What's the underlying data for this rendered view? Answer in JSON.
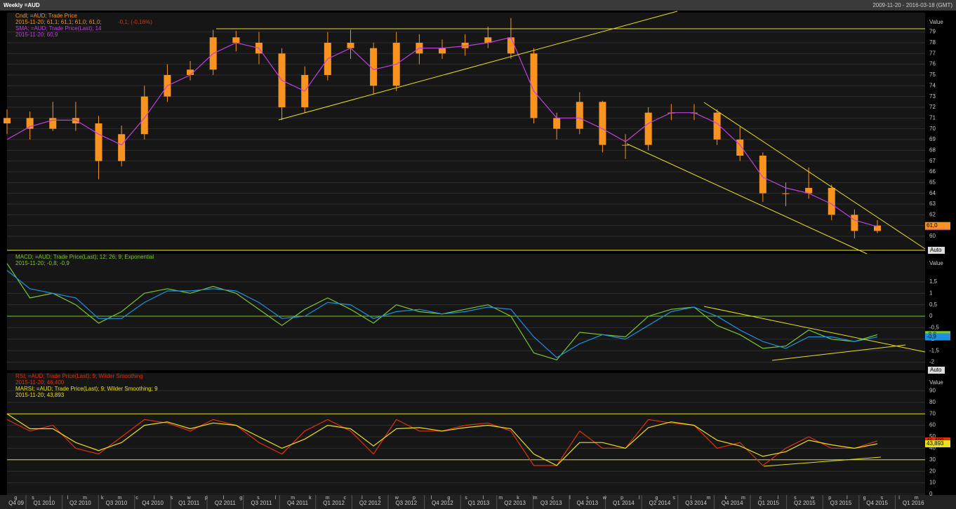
{
  "header": {
    "title": "Weekly =AUD",
    "range": "2009-11-20 - 2016-03-18 (GMT)"
  },
  "x_axis": {
    "quarters": [
      "Q4 09",
      "Q1 2010",
      "Q2 2010",
      "Q3 2010",
      "Q4 2010",
      "Q1 2011",
      "Q2 2011",
      "Q3 2011",
      "Q4 2011",
      "Q1 2012",
      "Q2 2012",
      "Q3 2012",
      "Q4 2012",
      "Q1 2013",
      "Q2 2013",
      "Q3 2013",
      "Q4 2013",
      "Q1 2014",
      "Q2 2014",
      "Q3 2014",
      "Q4 2014",
      "Q1 2015",
      "Q2 2015",
      "Q3 2015",
      "Q4 2015",
      "Q1 2016"
    ],
    "months": [
      "g",
      "s",
      "j",
      "l",
      "m",
      "k",
      "m",
      "c",
      "l",
      "s",
      "w",
      "p",
      "l",
      "g",
      "s",
      "l",
      "m",
      "k",
      "m",
      "c",
      "l",
      "s",
      "w",
      "p",
      "l",
      "g",
      "s",
      "l",
      "m",
      "k",
      "m",
      "c",
      "l",
      "s",
      "w",
      "p",
      "l",
      "g",
      "s",
      "l",
      "m",
      "k",
      "m",
      "c",
      "l",
      "s",
      "w",
      "p",
      "l",
      "g",
      "s",
      "l",
      "m"
    ]
  },
  "chart_data": [
    {
      "type": "candlestick",
      "axis_label": "Value",
      "scale_button": "Auto",
      "legend": [
        "Cndl; =AUD; Trade Price",
        "2015-11-20; 61,1; 61,1; 61,0; 61,0;",
        "-0,1; (-0,16%)",
        "SMA; =AUD; Trade Price(Last);  14",
        "2015-11-20; 60,9"
      ],
      "ylim": [
        58.7,
        80.8
      ],
      "yticks": [
        60,
        61,
        62,
        63,
        64,
        65,
        66,
        67,
        68,
        69,
        70,
        71,
        72,
        73,
        74,
        75,
        76,
        77,
        78,
        79
      ],
      "candles": {
        "color": "#f7931e",
        "open": [
          70.5,
          71,
          70,
          71,
          70.5,
          67,
          69.5,
          73,
          75,
          75.5,
          78.5,
          78,
          77,
          72,
          75,
          78,
          77.5,
          74,
          78,
          77,
          77.5,
          78,
          78.5,
          77,
          71,
          70,
          72.5,
          68.5,
          68.5,
          71.5,
          71.5,
          71.5,
          69,
          67.5,
          64,
          64,
          64.5,
          62,
          60.5
        ],
        "high": [
          71.8,
          71.6,
          72.5,
          72.5,
          71.2,
          70.3,
          74,
          76,
          76.3,
          79.2,
          79.1,
          79,
          77.5,
          75.8,
          79,
          79.2,
          78,
          79,
          78.8,
          78.3,
          78.8,
          79.5,
          80.3,
          77.5,
          71.5,
          73.4,
          72.6,
          69.5,
          72,
          72.3,
          72.3,
          71.8,
          70.2,
          67.8,
          65,
          66.4,
          64.8,
          62.5,
          61.5
        ],
        "low": [
          69.5,
          69,
          69.8,
          69.8,
          65.3,
          66.5,
          69,
          72.5,
          74.5,
          75,
          77.2,
          76,
          70.8,
          71.5,
          74.5,
          76.5,
          73.2,
          73.5,
          76,
          76.5,
          76.8,
          77.5,
          76.5,
          70.5,
          69,
          69.5,
          67.8,
          67.2,
          68,
          70.8,
          70.8,
          68.5,
          67,
          63.2,
          62.8,
          63.5,
          61.5,
          59.8,
          60.3
        ],
        "close": [
          71,
          70,
          71,
          70.5,
          67,
          69.5,
          73,
          75,
          75.5,
          78.5,
          78,
          77,
          72,
          75,
          78,
          77.5,
          74,
          78,
          77,
          77.5,
          78,
          78.5,
          77,
          71,
          70,
          72.5,
          68.5,
          68.5,
          71.5,
          71.5,
          71.5,
          69,
          67.5,
          64,
          64,
          64.5,
          62,
          60.5,
          61
        ],
        "last": {
          "value": 61.0,
          "label": "61,0"
        }
      },
      "series": [
        {
          "color": "#c040e0",
          "values": [
            69,
            70.2,
            70.8,
            70.8,
            69.5,
            68.5,
            71,
            74,
            75,
            77,
            78,
            77.5,
            74.5,
            73.5,
            76.5,
            77.5,
            75.5,
            76,
            77.5,
            77.5,
            77.7,
            78,
            78.5,
            73.5,
            71,
            71,
            70,
            68.8,
            70.5,
            71.5,
            71.5,
            70.5,
            68.5,
            65.5,
            64.5,
            64,
            63,
            61.5,
            60.9
          ],
          "last": {
            "value": 60.9,
            "label": "60,9"
          }
        }
      ]
    },
    {
      "type": "line",
      "axis_label": "Value",
      "scale_button": "Auto",
      "legend": [
        "MACD; =AUD; Trade Price(Last);  12; 26; 9; Exponential",
        "2015-11-20; -0,8; -0,9"
      ],
      "ylim": [
        -2.35,
        2.72
      ],
      "yticks": [
        {
          "value": 1.5,
          "label": "1,5"
        },
        1,
        {
          "value": 0.5,
          "label": "0,5"
        },
        0,
        {
          "value": -0.5,
          "label": "-0,5"
        },
        -1,
        {
          "value": -1.5,
          "label": "-1,5"
        },
        -2
      ],
      "hlines": [
        {
          "value": 0,
          "color": "#7bc62d"
        }
      ],
      "series": [
        {
          "color": "#7bc62d",
          "values": [
            2.3,
            0.8,
            1.0,
            0.5,
            -0.3,
            0.2,
            1.0,
            1.2,
            1.0,
            1.3,
            1.0,
            0.3,
            -0.4,
            0.3,
            0.8,
            0.3,
            -0.3,
            0.5,
            0.2,
            0.1,
            0.3,
            0.5,
            0.0,
            -1.6,
            -1.9,
            -0.7,
            -0.8,
            -0.9,
            0.0,
            0.3,
            0.4,
            -0.4,
            -0.8,
            -1.4,
            -1.3,
            -0.6,
            -1.0,
            -1.1,
            -0.8
          ],
          "last": {
            "value": -0.8,
            "label": "-0,8"
          }
        },
        {
          "color": "#1e90e0",
          "values": [
            2.0,
            1.2,
            1.0,
            0.8,
            -0.1,
            -0.1,
            0.6,
            1.1,
            1.1,
            1.2,
            1.1,
            0.6,
            -0.1,
            0.0,
            0.6,
            0.5,
            -0.1,
            0.2,
            0.3,
            0.1,
            0.2,
            0.4,
            0.3,
            -0.9,
            -1.8,
            -1.2,
            -0.8,
            -1.0,
            -0.4,
            0.2,
            0.4,
            0.0,
            -0.6,
            -1.1,
            -1.4,
            -0.9,
            -0.9,
            -1.1,
            -0.9
          ],
          "last": {
            "value": -0.9,
            "label": "-0,9"
          }
        }
      ]
    },
    {
      "type": "line",
      "axis_label": "Value",
      "legend": [
        "RSI; =AUD; Trade Price(Last);  9; Wilder Smoothing",
        "2015-11-20; 46,400",
        "MARSI; =AUD; Trade Price(Last);  9; Wilder Smoothing; 9",
        "2015-11-20; 43,893"
      ],
      "ylim": [
        0,
        105.5
      ],
      "yticks": [
        0,
        10,
        20,
        30,
        40,
        50,
        60,
        70,
        80,
        90
      ],
      "hlines": [
        {
          "value": 70,
          "color": "#d8d820"
        },
        {
          "value": 30,
          "color": "#d8d820"
        }
      ],
      "series": [
        {
          "color": "#e03010",
          "values": [
            65,
            55,
            60,
            40,
            35,
            50,
            65,
            62,
            55,
            65,
            60,
            45,
            35,
            55,
            65,
            55,
            35,
            65,
            55,
            55,
            60,
            62,
            55,
            25,
            25,
            55,
            40,
            40,
            65,
            62,
            60,
            40,
            45,
            25,
            40,
            50,
            40,
            40,
            46.4
          ],
          "last": {
            "value": 46.4,
            "label": "46,400"
          }
        },
        {
          "color": "#e8e020",
          "values": [
            70,
            57,
            57,
            45,
            38,
            45,
            60,
            63,
            57,
            62,
            60,
            50,
            40,
            48,
            60,
            57,
            42,
            57,
            58,
            55,
            58,
            60,
            57,
            35,
            25,
            45,
            45,
            40,
            58,
            63,
            60,
            47,
            42,
            33,
            37,
            47,
            43,
            40,
            43.893
          ],
          "last": {
            "value": 43.893,
            "label": "43,893"
          }
        }
      ]
    }
  ]
}
